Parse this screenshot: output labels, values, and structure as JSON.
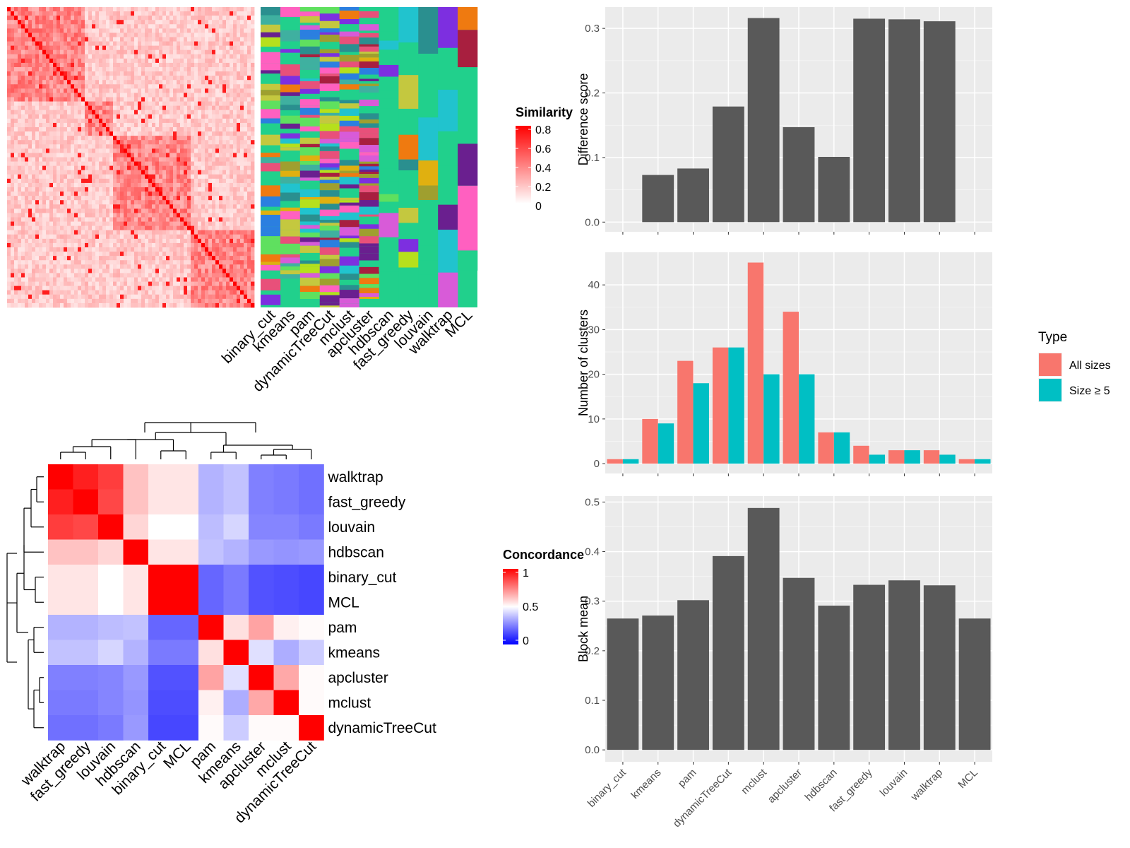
{
  "chart_data": [
    {
      "type": "heatmap",
      "legend": {
        "title": "Similarity",
        "ticks": [
          "0.8",
          "0.6",
          "0.4",
          "0.2",
          "0"
        ],
        "low_color": "#ffffff",
        "high_color": "#ff0000"
      },
      "column_labels": [
        "binary_cut",
        "kmeans",
        "pam",
        "dynamicTreeCut",
        "mclust",
        "apcluster",
        "hdbscan",
        "fast_greedy",
        "louvain",
        "walktrap",
        "MCL"
      ],
      "background_color": "#21d08c"
    },
    {
      "type": "heatmap",
      "legend": {
        "title": "Concordance",
        "ticks": [
          "1",
          "0.5",
          "0"
        ],
        "low_color": "#0000ff",
        "mid_color": "#ffffff",
        "high_color": "#ff0000"
      },
      "row_labels": [
        "walktrap",
        "fast_greedy",
        "louvain",
        "hdbscan",
        "binary_cut",
        "MCL",
        "pam",
        "kmeans",
        "apcluster",
        "mclust",
        "dynamicTreeCut"
      ],
      "col_labels": [
        "walktrap",
        "fast_greedy",
        "louvain",
        "hdbscan",
        "binary_cut",
        "MCL",
        "pam",
        "kmeans",
        "apcluster",
        "mclust",
        "dynamicTreeCut"
      ],
      "values": [
        [
          1.0,
          0.94,
          0.88,
          0.62,
          0.55,
          0.55,
          0.35,
          0.38,
          0.25,
          0.24,
          0.22
        ],
        [
          0.94,
          1.0,
          0.86,
          0.62,
          0.55,
          0.55,
          0.35,
          0.38,
          0.25,
          0.24,
          0.22
        ],
        [
          0.88,
          0.86,
          1.0,
          0.58,
          0.5,
          0.5,
          0.37,
          0.42,
          0.26,
          0.26,
          0.24
        ],
        [
          0.62,
          0.62,
          0.58,
          1.0,
          0.55,
          0.55,
          0.38,
          0.35,
          0.3,
          0.29,
          0.3
        ],
        [
          0.55,
          0.55,
          0.5,
          0.55,
          1.0,
          1.0,
          0.2,
          0.24,
          0.16,
          0.15,
          0.14
        ],
        [
          0.55,
          0.55,
          0.5,
          0.55,
          1.0,
          1.0,
          0.2,
          0.24,
          0.16,
          0.15,
          0.14
        ],
        [
          0.35,
          0.35,
          0.37,
          0.38,
          0.2,
          0.2,
          1.0,
          0.56,
          0.68,
          0.53,
          0.51
        ],
        [
          0.38,
          0.38,
          0.42,
          0.35,
          0.24,
          0.24,
          0.56,
          1.0,
          0.44,
          0.34,
          0.4
        ],
        [
          0.25,
          0.25,
          0.26,
          0.3,
          0.16,
          0.16,
          0.68,
          0.44,
          1.0,
          0.67,
          0.51
        ],
        [
          0.24,
          0.24,
          0.26,
          0.29,
          0.15,
          0.15,
          0.53,
          0.34,
          0.67,
          1.0,
          0.51
        ],
        [
          0.22,
          0.22,
          0.24,
          0.3,
          0.14,
          0.14,
          0.51,
          0.4,
          0.51,
          0.51,
          1.0
        ]
      ]
    },
    {
      "type": "bar",
      "categories": [
        "binary_cut",
        "kmeans",
        "pam",
        "dynamicTreeCut",
        "mclust",
        "apcluster",
        "hdbscan",
        "fast_greedy",
        "louvain",
        "walktrap",
        "MCL"
      ],
      "values": [
        0,
        0.073,
        0.083,
        0.179,
        0.316,
        0.147,
        0.101,
        0.315,
        0.314,
        0.311,
        0
      ],
      "ylabel": "Difference score",
      "ylim": [
        -0.015,
        0.333
      ],
      "yticks": [
        "0.0",
        "0.1",
        "0.2",
        "0.3"
      ],
      "bar_color": "#595959",
      "grid": true
    },
    {
      "type": "bar",
      "categories": [
        "binary_cut",
        "kmeans",
        "pam",
        "dynamicTreeCut",
        "mclust",
        "apcluster",
        "hdbscan",
        "fast_greedy",
        "louvain",
        "walktrap",
        "MCL"
      ],
      "series": [
        {
          "name": "All sizes",
          "values": [
            1,
            10,
            23,
            26,
            45,
            34,
            7,
            4,
            3,
            3,
            1
          ],
          "color": "#f8766d"
        },
        {
          "name": "Size ≥ 5",
          "values": [
            1,
            9,
            18,
            26,
            20,
            20,
            7,
            2,
            3,
            2,
            1
          ],
          "color": "#00bfc4"
        }
      ],
      "ylabel": "Number of clusters",
      "ylim": [
        -2.2,
        47.3
      ],
      "yticks": [
        "0",
        "10",
        "20",
        "30",
        "40"
      ],
      "legend": {
        "title": "Type",
        "position": "right"
      },
      "grid": true
    },
    {
      "type": "bar",
      "categories": [
        "binary_cut",
        "kmeans",
        "pam",
        "dynamicTreeCut",
        "mclust",
        "apcluster",
        "hdbscan",
        "fast_greedy",
        "louvain",
        "walktrap",
        "MCL"
      ],
      "values": [
        0.265,
        0.271,
        0.302,
        0.391,
        0.488,
        0.347,
        0.291,
        0.333,
        0.342,
        0.332,
        0.265
      ],
      "ylabel": "Block mean",
      "ylim": [
        -0.024,
        0.512
      ],
      "yticks": [
        "0.0",
        "0.1",
        "0.2",
        "0.3",
        "0.4",
        "0.5"
      ],
      "bar_color": "#595959",
      "grid": true
    }
  ]
}
